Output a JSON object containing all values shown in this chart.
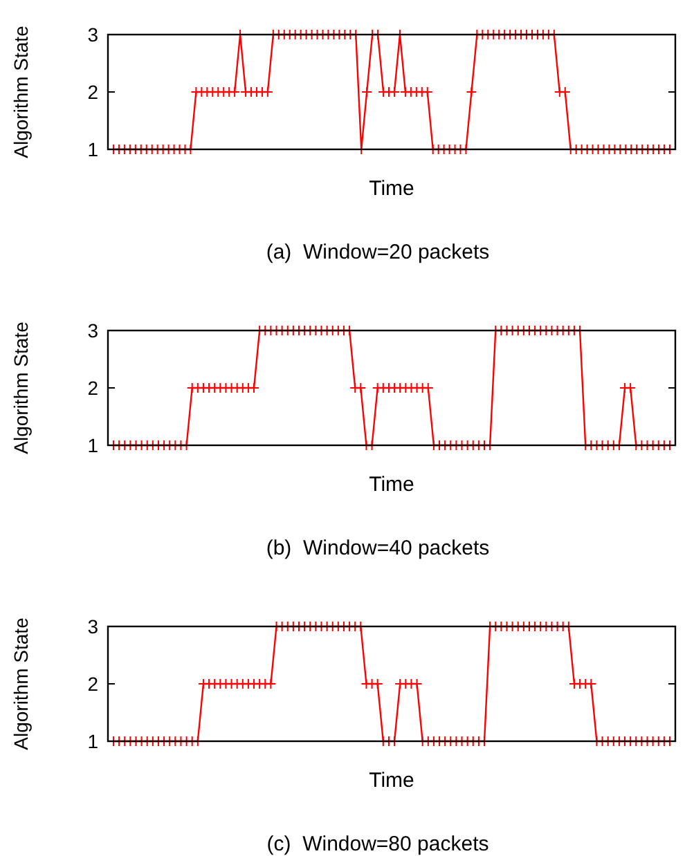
{
  "chart_data": [
    {
      "type": "line",
      "title": "(a)  Window=20 packets",
      "xlabel": "Time",
      "ylabel": "Algorithm State",
      "categories": [
        null,
        null,
        null,
        null,
        null,
        null,
        null,
        null,
        null,
        null,
        null,
        null,
        null,
        null,
        null,
        null,
        null,
        null,
        null,
        null,
        null,
        null,
        null,
        null,
        null,
        null,
        null,
        null,
        null,
        null,
        null,
        null,
        null,
        null,
        null,
        null,
        null,
        null,
        null,
        null,
        null,
        null,
        null,
        null,
        null,
        null,
        null,
        null,
        null,
        null,
        null,
        null,
        null,
        null,
        null,
        null,
        null,
        null,
        null,
        null,
        null,
        null,
        null,
        null,
        null,
        null,
        null,
        null,
        null,
        null,
        null,
        null,
        null,
        null,
        null,
        null,
        null,
        null,
        null,
        null,
        null,
        null,
        null,
        null,
        null,
        null,
        null,
        null,
        null,
        null,
        null,
        null,
        null,
        null,
        null,
        null,
        null,
        null,
        null,
        null,
        null,
        null
      ],
      "ylim": [
        1,
        3
      ],
      "yticks": [
        1,
        2,
        3
      ],
      "marker": "cross",
      "line_style": "solid",
      "series": [
        {
          "color": "#ff0000",
          "values": [
            1,
            1,
            1,
            1,
            1,
            1,
            1,
            1,
            1,
            1,
            1,
            1,
            1,
            1,
            1,
            2,
            2,
            2,
            2,
            2,
            2,
            2,
            2,
            3,
            2,
            2,
            2,
            2,
            2,
            3,
            3,
            3,
            3,
            3,
            3,
            3,
            3,
            3,
            3,
            3,
            3,
            3,
            3,
            3,
            3,
            1,
            2,
            3,
            3,
            2,
            2,
            2,
            3,
            2,
            2,
            2,
            2,
            2,
            1,
            1,
            1,
            1,
            1,
            1,
            1,
            2,
            3,
            3,
            3,
            3,
            3,
            3,
            3,
            3,
            3,
            3,
            3,
            3,
            3,
            3,
            3,
            2,
            2,
            1,
            1,
            1,
            1,
            1,
            1,
            1,
            1,
            1,
            1,
            1,
            1,
            1,
            1,
            1,
            1,
            1,
            1,
            1
          ]
        }
      ]
    },
    {
      "type": "line",
      "title": "(b)  Window=40 packets",
      "xlabel": "Time",
      "ylabel": "Algorithm State",
      "categories": [
        null,
        null,
        null,
        null,
        null,
        null,
        null,
        null,
        null,
        null,
        null,
        null,
        null,
        null,
        null,
        null,
        null,
        null,
        null,
        null,
        null,
        null,
        null,
        null,
        null,
        null,
        null,
        null,
        null,
        null,
        null,
        null,
        null,
        null,
        null,
        null,
        null,
        null,
        null,
        null,
        null,
        null,
        null,
        null,
        null,
        null,
        null,
        null,
        null,
        null,
        null,
        null,
        null,
        null,
        null,
        null,
        null,
        null,
        null,
        null,
        null,
        null,
        null,
        null,
        null,
        null,
        null,
        null,
        null,
        null,
        null,
        null,
        null,
        null,
        null,
        null,
        null,
        null,
        null,
        null,
        null,
        null,
        null,
        null,
        null,
        null,
        null,
        null,
        null,
        null,
        null,
        null,
        null,
        null,
        null,
        null,
        null,
        null,
        null,
        null
      ],
      "ylim": [
        1,
        3
      ],
      "yticks": [
        1,
        2,
        3
      ],
      "marker": "cross",
      "line_style": "solid",
      "series": [
        {
          "color": "#ff0000",
          "values": [
            1,
            1,
            1,
            1,
            1,
            1,
            1,
            1,
            1,
            1,
            1,
            1,
            1,
            1,
            2,
            2,
            2,
            2,
            2,
            2,
            2,
            2,
            2,
            2,
            2,
            2,
            3,
            3,
            3,
            3,
            3,
            3,
            3,
            3,
            3,
            3,
            3,
            3,
            3,
            3,
            3,
            3,
            3,
            2,
            2,
            1,
            1,
            2,
            2,
            2,
            2,
            2,
            2,
            2,
            2,
            2,
            2,
            1,
            1,
            1,
            1,
            1,
            1,
            1,
            1,
            1,
            1,
            1,
            3,
            3,
            3,
            3,
            3,
            3,
            3,
            3,
            3,
            3,
            3,
            3,
            3,
            3,
            3,
            3,
            1,
            1,
            1,
            1,
            1,
            1,
            1,
            2,
            2,
            1,
            1,
            1,
            1,
            1,
            1,
            1
          ]
        }
      ]
    },
    {
      "type": "line",
      "title": "(c)  Window=80 packets",
      "xlabel": "Time",
      "ylabel": "Algorithm State",
      "categories": [
        null,
        null,
        null,
        null,
        null,
        null,
        null,
        null,
        null,
        null,
        null,
        null,
        null,
        null,
        null,
        null,
        null,
        null,
        null,
        null,
        null,
        null,
        null,
        null,
        null,
        null,
        null,
        null,
        null,
        null,
        null,
        null,
        null,
        null,
        null,
        null,
        null,
        null,
        null,
        null,
        null,
        null,
        null,
        null,
        null,
        null,
        null,
        null,
        null,
        null,
        null,
        null,
        null,
        null,
        null,
        null,
        null,
        null,
        null,
        null,
        null,
        null,
        null,
        null,
        null,
        null,
        null,
        null,
        null,
        null,
        null,
        null,
        null,
        null,
        null,
        null,
        null,
        null,
        null,
        null,
        null,
        null,
        null,
        null,
        null,
        null,
        null,
        null,
        null,
        null,
        null,
        null,
        null,
        null,
        null,
        null,
        null,
        null,
        null,
        null
      ],
      "ylim": [
        1,
        3
      ],
      "yticks": [
        1,
        2,
        3
      ],
      "marker": "cross",
      "line_style": "solid",
      "series": [
        {
          "color": "#ff0000",
          "values": [
            1,
            1,
            1,
            1,
            1,
            1,
            1,
            1,
            1,
            1,
            1,
            1,
            1,
            1,
            1,
            1,
            2,
            2,
            2,
            2,
            2,
            2,
            2,
            2,
            2,
            2,
            2,
            2,
            2,
            3,
            3,
            3,
            3,
            3,
            3,
            3,
            3,
            3,
            3,
            3,
            3,
            3,
            3,
            3,
            3,
            2,
            2,
            2,
            1,
            1,
            1,
            2,
            2,
            2,
            2,
            1,
            1,
            1,
            1,
            1,
            1,
            1,
            1,
            1,
            1,
            1,
            1,
            3,
            3,
            3,
            3,
            3,
            3,
            3,
            3,
            3,
            3,
            3,
            3,
            3,
            3,
            3,
            2,
            2,
            2,
            2,
            1,
            1,
            1,
            1,
            1,
            1,
            1,
            1,
            1,
            1,
            1,
            1,
            1,
            1
          ]
        }
      ]
    }
  ]
}
